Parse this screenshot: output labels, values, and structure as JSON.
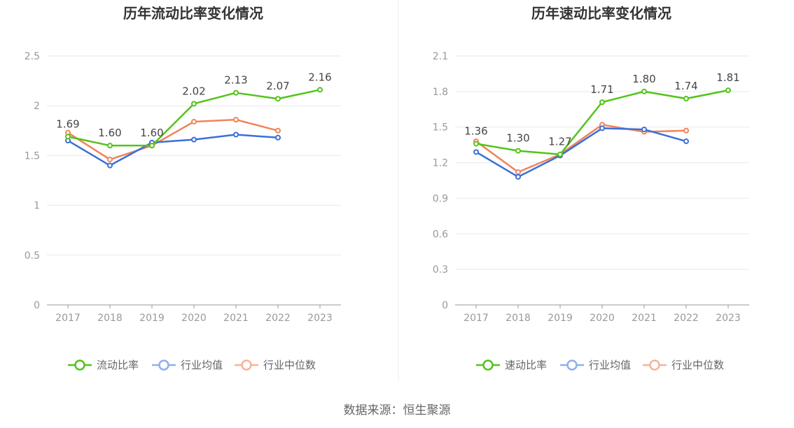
{
  "chart_data": [
    {
      "type": "line",
      "title": "历年流动比率变化情况",
      "categories": [
        "2017",
        "2018",
        "2019",
        "2020",
        "2021",
        "2022",
        "2023"
      ],
      "ylim": [
        0,
        2.5
      ],
      "yticks": [
        "0",
        "0.5",
        "1",
        "1.5",
        "2",
        "2.5"
      ],
      "grid": true,
      "legend_position": "bottom",
      "series": [
        {
          "name": "流动比率",
          "color": "#52c41a",
          "values": [
            1.69,
            1.6,
            1.6,
            2.02,
            2.13,
            2.07,
            2.16
          ],
          "labels": [
            "1.69",
            "1.60",
            "1.60",
            "2.02",
            "2.13",
            "2.07",
            "2.16"
          ]
        },
        {
          "name": "行业均值",
          "color": "#3a6fd8",
          "values": [
            1.65,
            1.4,
            1.63,
            1.66,
            1.71,
            1.68,
            null
          ]
        },
        {
          "name": "行业中位数",
          "color": "#f0845a",
          "values": [
            1.73,
            1.46,
            1.6,
            1.84,
            1.86,
            1.75,
            null
          ]
        }
      ]
    },
    {
      "type": "line",
      "title": "历年速动比率变化情况",
      "categories": [
        "2017",
        "2018",
        "2019",
        "2020",
        "2021",
        "2022",
        "2023"
      ],
      "ylim": [
        0,
        2.1
      ],
      "yticks": [
        "0",
        "0.3",
        "0.6",
        "0.9",
        "1.2",
        "1.5",
        "1.8",
        "2.1"
      ],
      "grid": true,
      "legend_position": "bottom",
      "series": [
        {
          "name": "速动比率",
          "color": "#52c41a",
          "values": [
            1.36,
            1.3,
            1.27,
            1.71,
            1.8,
            1.74,
            1.81
          ],
          "labels": [
            "1.36",
            "1.30",
            "1.27",
            "1.71",
            "1.80",
            "1.74",
            "1.81"
          ]
        },
        {
          "name": "行业均值",
          "color": "#3a6fd8",
          "values": [
            1.29,
            1.08,
            1.26,
            1.49,
            1.48,
            1.38,
            null
          ]
        },
        {
          "name": "行业中位数",
          "color": "#f0845a",
          "values": [
            1.38,
            1.12,
            1.27,
            1.52,
            1.46,
            1.47,
            null
          ]
        }
      ]
    }
  ],
  "legend_icon_colors": [
    "#52c41a",
    "#8fb0ea",
    "#f5b39a"
  ],
  "source_text": "数据来源：恒生聚源"
}
